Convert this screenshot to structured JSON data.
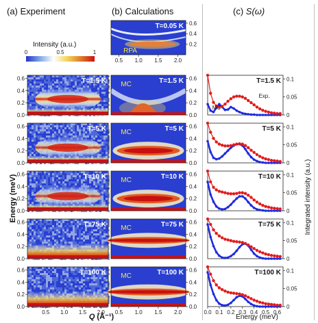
{
  "headers": {
    "a": "(a) Experiment",
    "b": "(b) Calculations",
    "c_prefix": "(c) ",
    "c_func": "S(ω)"
  },
  "colorbar": {
    "label": "Intensity (a.u.)",
    "ticks": [
      "0",
      "0.5",
      "1"
    ],
    "colors": [
      "#2233cc",
      "#7fa6e6",
      "#ffffff",
      "#f2d55a",
      "#e07a28",
      "#cc1111"
    ]
  },
  "panel_text": {
    "rpa": "RPA",
    "mc": "MC",
    "exp": "Exp."
  },
  "axes": {
    "y_energy_label": "Energy (meV)",
    "x_q_label_main": "Q",
    "x_q_label_unit": " (Å⁻¹)",
    "x_energy_label": "Energy (meV)",
    "y_integrated_label": "Integrated intensity (a.u.)",
    "q_ticks": [
      "0.5",
      "1.0",
      "1.5",
      "2.0"
    ],
    "e_ticks": [
      "0.0",
      "0.2",
      "0.4",
      "0.6"
    ],
    "rpa_e_ticks": [
      "0.2",
      "0.4",
      "0.6"
    ],
    "s_x_ticks": [
      "0.0",
      "0.1",
      "0.2",
      "0.3",
      "0.4",
      "0.5",
      "0.6"
    ],
    "s_y_ticks": [
      "0",
      "0.05",
      "0.1"
    ]
  },
  "colors": {
    "experiment": "#e21b1b",
    "mc": "#1f2ce0"
  },
  "chart_data": [
    {
      "type": "heatmap",
      "panel": "a",
      "xlabel": "Q (Å⁻¹)",
      "ylabel": "Energy (meV)",
      "xlim": [
        0.0,
        2.2
      ],
      "ylim": [
        0.0,
        0.65
      ],
      "temperatures": [
        "T=1.5 K",
        "T=5 K",
        "T=10 K",
        "T=75 K",
        "T=100 K"
      ],
      "band_center_meV": [
        0.26,
        0.25,
        0.24,
        0.0,
        0.0
      ],
      "band_intensity": [
        0.95,
        0.85,
        0.8,
        0.4,
        0.35
      ]
    },
    {
      "type": "heatmap",
      "panel": "b",
      "title_labels": [
        "RPA",
        "MC",
        "MC",
        "MC",
        "MC",
        "MC"
      ],
      "temperatures": [
        "T=0.05 K",
        "T=1.5 K",
        "T=5 K",
        "T=10 K",
        "T=75 K",
        "T=100 K"
      ],
      "xlim": [
        0.3,
        2.2
      ],
      "ylim": [
        0.0,
        0.65
      ],
      "band_center_meV": [
        0.2,
        0.04,
        0.2,
        0.2,
        0.3,
        0.24
      ]
    },
    {
      "type": "line",
      "panel": "c",
      "xlabel": "Energy (meV)",
      "ylabel": "Integrated intensity (a.u.)",
      "xlim": [
        0.0,
        0.65
      ],
      "ylim": [
        0.0,
        0.11
      ],
      "temperatures": [
        "T=1.5 K",
        "T=5 K",
        "T=10 K",
        "T=75 K",
        "T=100 K"
      ],
      "x": [
        0.0,
        0.025,
        0.05,
        0.075,
        0.1,
        0.125,
        0.15,
        0.175,
        0.2,
        0.225,
        0.25,
        0.275,
        0.3,
        0.325,
        0.35,
        0.375,
        0.4,
        0.425,
        0.45,
        0.475,
        0.5,
        0.525,
        0.55,
        0.575,
        0.6,
        0.625
      ],
      "series": [
        {
          "name": "Exp.",
          "temperature": "T=1.5 K",
          "values": [
            0.11,
            0.06,
            0.035,
            0.025,
            0.022,
            0.024,
            0.03,
            0.038,
            0.045,
            0.05,
            0.052,
            0.052,
            0.05,
            0.046,
            0.04,
            0.034,
            0.028,
            0.022,
            0.017,
            0.013,
            0.01,
            0.008,
            0.006,
            0.005,
            0.004,
            0.004
          ]
        },
        {
          "name": "MC",
          "temperature": "T=1.5 K",
          "values": [
            0.03,
            0.012,
            0.008,
            0.02,
            0.03,
            0.022,
            0.014,
            0.015,
            0.022,
            0.018,
            0.012,
            0.008,
            0.005,
            0.003,
            0.002,
            0.001,
            0.001,
            0.0,
            0.0,
            0.0,
            0.0,
            0.0,
            0.0,
            0.0,
            0.0,
            0.0
          ]
        },
        {
          "temperature": "T=5 K",
          "values": [
            0.11,
            0.085,
            0.068,
            0.058,
            0.052,
            0.049,
            0.047,
            0.047,
            0.048,
            0.05,
            0.052,
            0.053,
            0.052,
            0.048,
            0.042,
            0.035,
            0.029,
            0.023,
            0.018,
            0.014,
            0.011,
            0.009,
            0.007,
            0.006,
            0.005,
            0.004
          ]
        },
        {
          "temperature": "T=5 K",
          "values": [
            0.06,
            0.03,
            0.014,
            0.01,
            0.012,
            0.018,
            0.026,
            0.034,
            0.042,
            0.048,
            0.052,
            0.052,
            0.048,
            0.038,
            0.026,
            0.016,
            0.009,
            0.005,
            0.002,
            0.001,
            0.0,
            0.0,
            0.0,
            0.0,
            0.0,
            0.0
          ]
        },
        {
          "temperature": "T=10 K",
          "values": [
            0.11,
            0.08,
            0.065,
            0.058,
            0.054,
            0.052,
            0.05,
            0.048,
            0.047,
            0.047,
            0.048,
            0.05,
            0.05,
            0.048,
            0.043,
            0.037,
            0.03,
            0.024,
            0.019,
            0.015,
            0.012,
            0.01,
            0.008,
            0.007,
            0.006,
            0.005
          ]
        },
        {
          "temperature": "T=10 K",
          "values": [
            0.08,
            0.045,
            0.025,
            0.012,
            0.006,
            0.004,
            0.005,
            0.01,
            0.017,
            0.026,
            0.034,
            0.04,
            0.04,
            0.034,
            0.024,
            0.015,
            0.008,
            0.004,
            0.002,
            0.001,
            0.0,
            0.0,
            0.0,
            0.0,
            0.0,
            0.0
          ]
        },
        {
          "temperature": "T=75 K",
          "values": [
            0.11,
            0.095,
            0.08,
            0.07,
            0.063,
            0.058,
            0.054,
            0.052,
            0.05,
            0.048,
            0.047,
            0.046,
            0.045,
            0.042,
            0.038,
            0.033,
            0.028,
            0.023,
            0.019,
            0.016,
            0.013,
            0.011,
            0.009,
            0.008,
            0.007,
            0.006
          ]
        },
        {
          "temperature": "T=75 K",
          "values": [
            0.095,
            0.06,
            0.035,
            0.018,
            0.008,
            0.003,
            0.002,
            0.003,
            0.007,
            0.013,
            0.022,
            0.032,
            0.04,
            0.042,
            0.036,
            0.025,
            0.014,
            0.007,
            0.003,
            0.001,
            0.0,
            0.0,
            0.0,
            0.0,
            0.0,
            0.0
          ]
        },
        {
          "temperature": "T=100 K",
          "values": [
            0.11,
            0.09,
            0.072,
            0.06,
            0.052,
            0.047,
            0.043,
            0.04,
            0.038,
            0.037,
            0.036,
            0.035,
            0.033,
            0.03,
            0.026,
            0.022,
            0.018,
            0.015,
            0.012,
            0.01,
            0.008,
            0.007,
            0.006,
            0.005,
            0.004,
            0.004
          ]
        },
        {
          "temperature": "T=100 K",
          "values": [
            0.095,
            0.06,
            0.035,
            0.018,
            0.008,
            0.004,
            0.003,
            0.005,
            0.01,
            0.018,
            0.026,
            0.03,
            0.028,
            0.021,
            0.013,
            0.007,
            0.003,
            0.001,
            0.0,
            0.0,
            0.0,
            0.0,
            0.0,
            0.0,
            0.0,
            0.0
          ]
        }
      ]
    }
  ]
}
